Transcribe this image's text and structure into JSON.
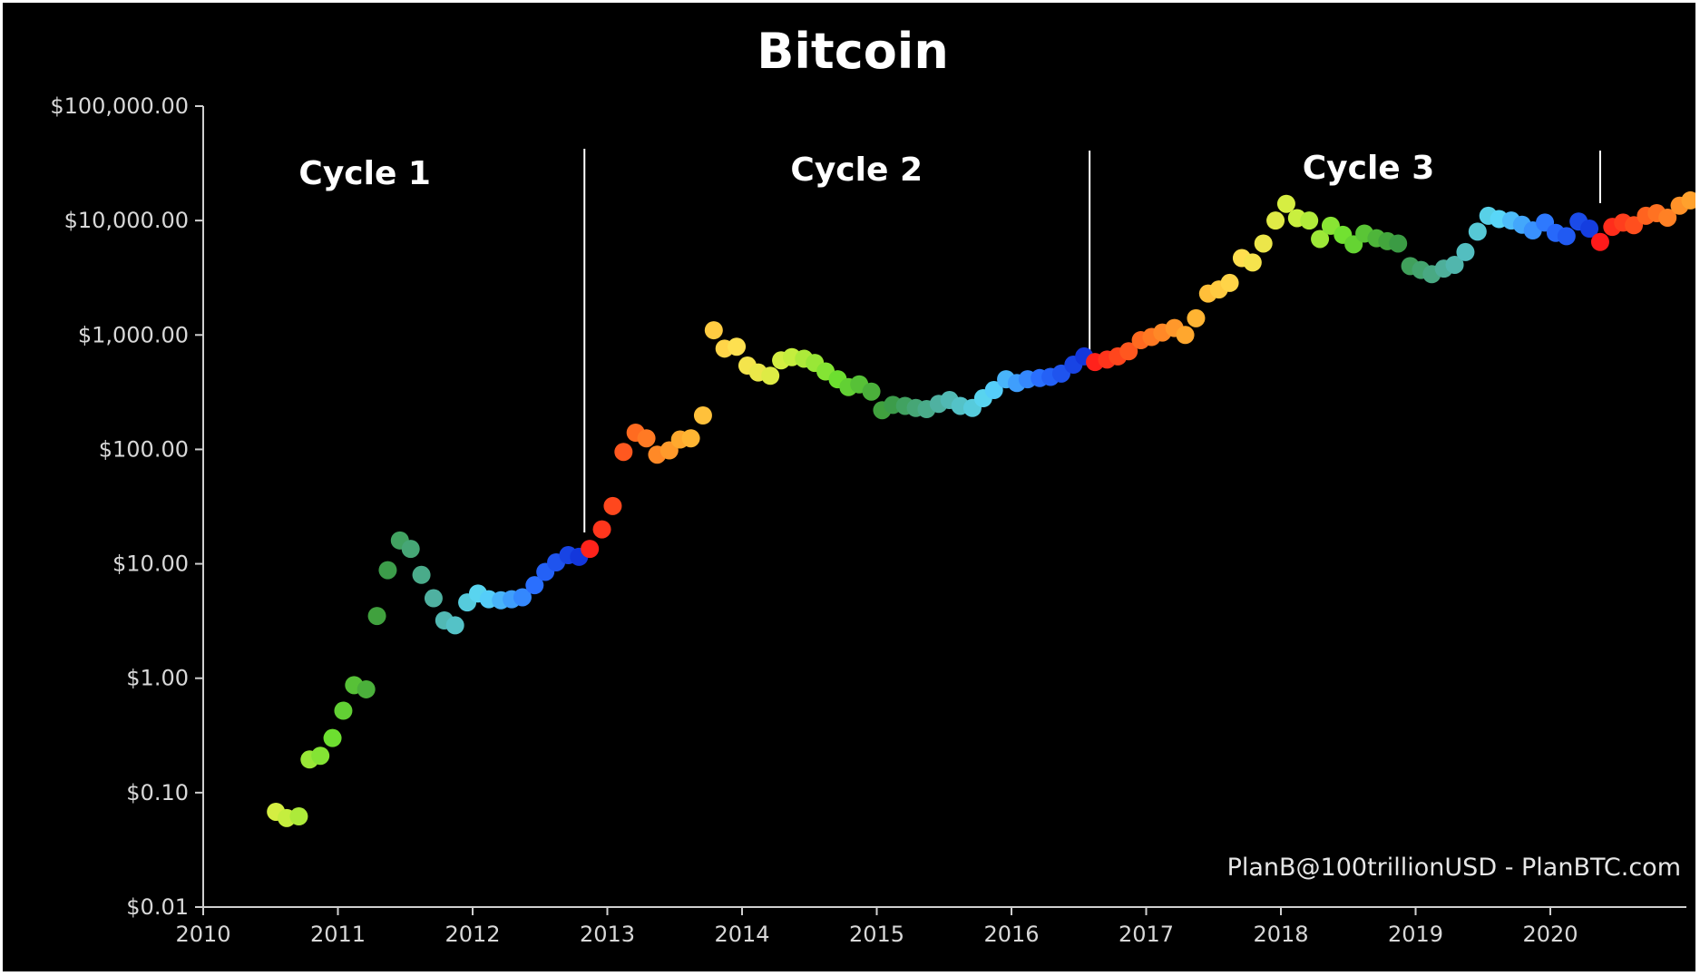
{
  "chart_data": {
    "type": "scatter",
    "title": "Bitcoin",
    "xlabel": "",
    "ylabel": "",
    "y_scale": "log",
    "xlim": [
      2010,
      2021
    ],
    "ylim": [
      0.01,
      100000
    ],
    "grid": false,
    "background": "#000000",
    "x_ticks": [
      "2010",
      "2011",
      "2012",
      "2013",
      "2014",
      "2015",
      "2016",
      "2017",
      "2018",
      "2019",
      "2020"
    ],
    "x_tick_values": [
      2010,
      2011,
      2012,
      2013,
      2014,
      2015,
      2016,
      2017,
      2018,
      2019,
      2020
    ],
    "y_ticks": [
      "$100,000.00",
      "$10,000.00",
      "$1,000.00",
      "$100.00",
      "$10.00",
      "$1.00",
      "$0.10",
      "$0.01"
    ],
    "y_tick_values": [
      100000,
      10000,
      1000,
      100,
      10,
      1,
      0.1,
      0.01
    ],
    "cycle_boundaries": [
      2012.83,
      2016.58,
      2020.37
    ],
    "cycles": [
      {
        "label": "Cycle 1",
        "x": 2011.2
      },
      {
        "label": "Cycle 2",
        "x": 2014.85
      },
      {
        "label": "Cycle 3",
        "x": 2018.65
      }
    ],
    "credit": "PlanB@100trillionUSD - PlanBTC.com",
    "color_scale": [
      "#ff1a1a",
      "#ff6a20",
      "#ffb030",
      "#ffe050",
      "#cff040",
      "#6ee030",
      "#3a9a40",
      "#4fb0a0",
      "#5ad8f8",
      "#2a70ff",
      "#1030d8"
    ],
    "points": [
      {
        "x": 2010.54,
        "y": 0.068
      },
      {
        "x": 2010.62,
        "y": 0.06
      },
      {
        "x": 2010.71,
        "y": 0.062
      },
      {
        "x": 2010.79,
        "y": 0.195
      },
      {
        "x": 2010.87,
        "y": 0.21
      },
      {
        "x": 2010.96,
        "y": 0.3
      },
      {
        "x": 2011.04,
        "y": 0.52
      },
      {
        "x": 2011.12,
        "y": 0.87
      },
      {
        "x": 2011.21,
        "y": 0.8
      },
      {
        "x": 2011.29,
        "y": 3.5
      },
      {
        "x": 2011.37,
        "y": 8.8
      },
      {
        "x": 2011.46,
        "y": 16.0
      },
      {
        "x": 2011.54,
        "y": 13.5
      },
      {
        "x": 2011.62,
        "y": 8.0
      },
      {
        "x": 2011.71,
        "y": 5.0
      },
      {
        "x": 2011.79,
        "y": 3.2
      },
      {
        "x": 2011.87,
        "y": 2.9
      },
      {
        "x": 2011.96,
        "y": 4.6
      },
      {
        "x": 2012.04,
        "y": 5.5
      },
      {
        "x": 2012.12,
        "y": 4.9
      },
      {
        "x": 2012.21,
        "y": 4.8
      },
      {
        "x": 2012.29,
        "y": 4.9
      },
      {
        "x": 2012.37,
        "y": 5.1
      },
      {
        "x": 2012.46,
        "y": 6.5
      },
      {
        "x": 2012.54,
        "y": 8.5
      },
      {
        "x": 2012.62,
        "y": 10.3
      },
      {
        "x": 2012.71,
        "y": 11.9
      },
      {
        "x": 2012.79,
        "y": 11.5
      },
      {
        "x": 2012.87,
        "y": 13.5
      },
      {
        "x": 2012.96,
        "y": 20.0
      },
      {
        "x": 2013.04,
        "y": 32.0
      },
      {
        "x": 2013.12,
        "y": 95.0
      },
      {
        "x": 2013.21,
        "y": 140.0
      },
      {
        "x": 2013.29,
        "y": 125.0
      },
      {
        "x": 2013.37,
        "y": 90.0
      },
      {
        "x": 2013.46,
        "y": 98.0
      },
      {
        "x": 2013.54,
        "y": 122.0
      },
      {
        "x": 2013.62,
        "y": 125.0
      },
      {
        "x": 2013.71,
        "y": 198.0
      },
      {
        "x": 2013.79,
        "y": 1100.0
      },
      {
        "x": 2013.87,
        "y": 760.0
      },
      {
        "x": 2013.96,
        "y": 790.0
      },
      {
        "x": 2014.04,
        "y": 540.0
      },
      {
        "x": 2014.12,
        "y": 470.0
      },
      {
        "x": 2014.21,
        "y": 440.0
      },
      {
        "x": 2014.29,
        "y": 600.0
      },
      {
        "x": 2014.37,
        "y": 640.0
      },
      {
        "x": 2014.46,
        "y": 620.0
      },
      {
        "x": 2014.54,
        "y": 570.0
      },
      {
        "x": 2014.62,
        "y": 480.0
      },
      {
        "x": 2014.71,
        "y": 410.0
      },
      {
        "x": 2014.79,
        "y": 350.0
      },
      {
        "x": 2014.87,
        "y": 370.0
      },
      {
        "x": 2014.96,
        "y": 320.0
      },
      {
        "x": 2015.04,
        "y": 220.0
      },
      {
        "x": 2015.12,
        "y": 245.0
      },
      {
        "x": 2015.21,
        "y": 240.0
      },
      {
        "x": 2015.29,
        "y": 230.0
      },
      {
        "x": 2015.37,
        "y": 225.0
      },
      {
        "x": 2015.46,
        "y": 250.0
      },
      {
        "x": 2015.54,
        "y": 270.0
      },
      {
        "x": 2015.62,
        "y": 240.0
      },
      {
        "x": 2015.71,
        "y": 230.0
      },
      {
        "x": 2015.79,
        "y": 280.0
      },
      {
        "x": 2015.87,
        "y": 330.0
      },
      {
        "x": 2015.96,
        "y": 410.0
      },
      {
        "x": 2016.04,
        "y": 380.0
      },
      {
        "x": 2016.12,
        "y": 410.0
      },
      {
        "x": 2016.21,
        "y": 420.0
      },
      {
        "x": 2016.29,
        "y": 430.0
      },
      {
        "x": 2016.37,
        "y": 460.0
      },
      {
        "x": 2016.46,
        "y": 550.0
      },
      {
        "x": 2016.54,
        "y": 650.0
      },
      {
        "x": 2016.62,
        "y": 580.0
      },
      {
        "x": 2016.71,
        "y": 610.0
      },
      {
        "x": 2016.79,
        "y": 650.0
      },
      {
        "x": 2016.87,
        "y": 720.0
      },
      {
        "x": 2016.96,
        "y": 900.0
      },
      {
        "x": 2017.04,
        "y": 960.0
      },
      {
        "x": 2017.12,
        "y": 1050.0
      },
      {
        "x": 2017.21,
        "y": 1150.0
      },
      {
        "x": 2017.29,
        "y": 1000.0
      },
      {
        "x": 2017.37,
        "y": 1400.0
      },
      {
        "x": 2017.46,
        "y": 2300.0
      },
      {
        "x": 2017.54,
        "y": 2500.0
      },
      {
        "x": 2017.62,
        "y": 2850.0
      },
      {
        "x": 2017.71,
        "y": 4700.0
      },
      {
        "x": 2017.79,
        "y": 4300.0
      },
      {
        "x": 2017.87,
        "y": 6300.0
      },
      {
        "x": 2017.96,
        "y": 10000.0
      },
      {
        "x": 2018.04,
        "y": 14000.0
      },
      {
        "x": 2018.12,
        "y": 10500.0
      },
      {
        "x": 2018.21,
        "y": 10000.0
      },
      {
        "x": 2018.29,
        "y": 6900.0
      },
      {
        "x": 2018.37,
        "y": 9000.0
      },
      {
        "x": 2018.46,
        "y": 7500.0
      },
      {
        "x": 2018.54,
        "y": 6200.0
      },
      {
        "x": 2018.62,
        "y": 7700.0
      },
      {
        "x": 2018.71,
        "y": 7000.0
      },
      {
        "x": 2018.79,
        "y": 6600.0
      },
      {
        "x": 2018.87,
        "y": 6300.0
      },
      {
        "x": 2018.96,
        "y": 4000.0
      },
      {
        "x": 2019.04,
        "y": 3700.0
      },
      {
        "x": 2019.12,
        "y": 3400.0
      },
      {
        "x": 2019.21,
        "y": 3800.0
      },
      {
        "x": 2019.29,
        "y": 4100.0
      },
      {
        "x": 2019.37,
        "y": 5300.0
      },
      {
        "x": 2019.46,
        "y": 8000.0
      },
      {
        "x": 2019.54,
        "y": 11000.0
      },
      {
        "x": 2019.62,
        "y": 10300.0
      },
      {
        "x": 2019.71,
        "y": 10000.0
      },
      {
        "x": 2019.79,
        "y": 9200.0
      },
      {
        "x": 2019.87,
        "y": 8200.0
      },
      {
        "x": 2019.96,
        "y": 9600.0
      },
      {
        "x": 2020.04,
        "y": 7800.0
      },
      {
        "x": 2020.12,
        "y": 7300.0
      },
      {
        "x": 2020.21,
        "y": 9800.0
      },
      {
        "x": 2020.29,
        "y": 8500.0
      },
      {
        "x": 2020.37,
        "y": 6500.0
      },
      {
        "x": 2020.46,
        "y": 8800.0
      },
      {
        "x": 2020.54,
        "y": 9600.0
      },
      {
        "x": 2020.62,
        "y": 9100.0
      },
      {
        "x": 2020.71,
        "y": 11000.0
      },
      {
        "x": 2020.79,
        "y": 11600.0
      },
      {
        "x": 2020.87,
        "y": 10600.0
      },
      {
        "x": 2020.96,
        "y": 13500.0
      },
      {
        "x": 2021.04,
        "y": 15000.0
      }
    ]
  }
}
